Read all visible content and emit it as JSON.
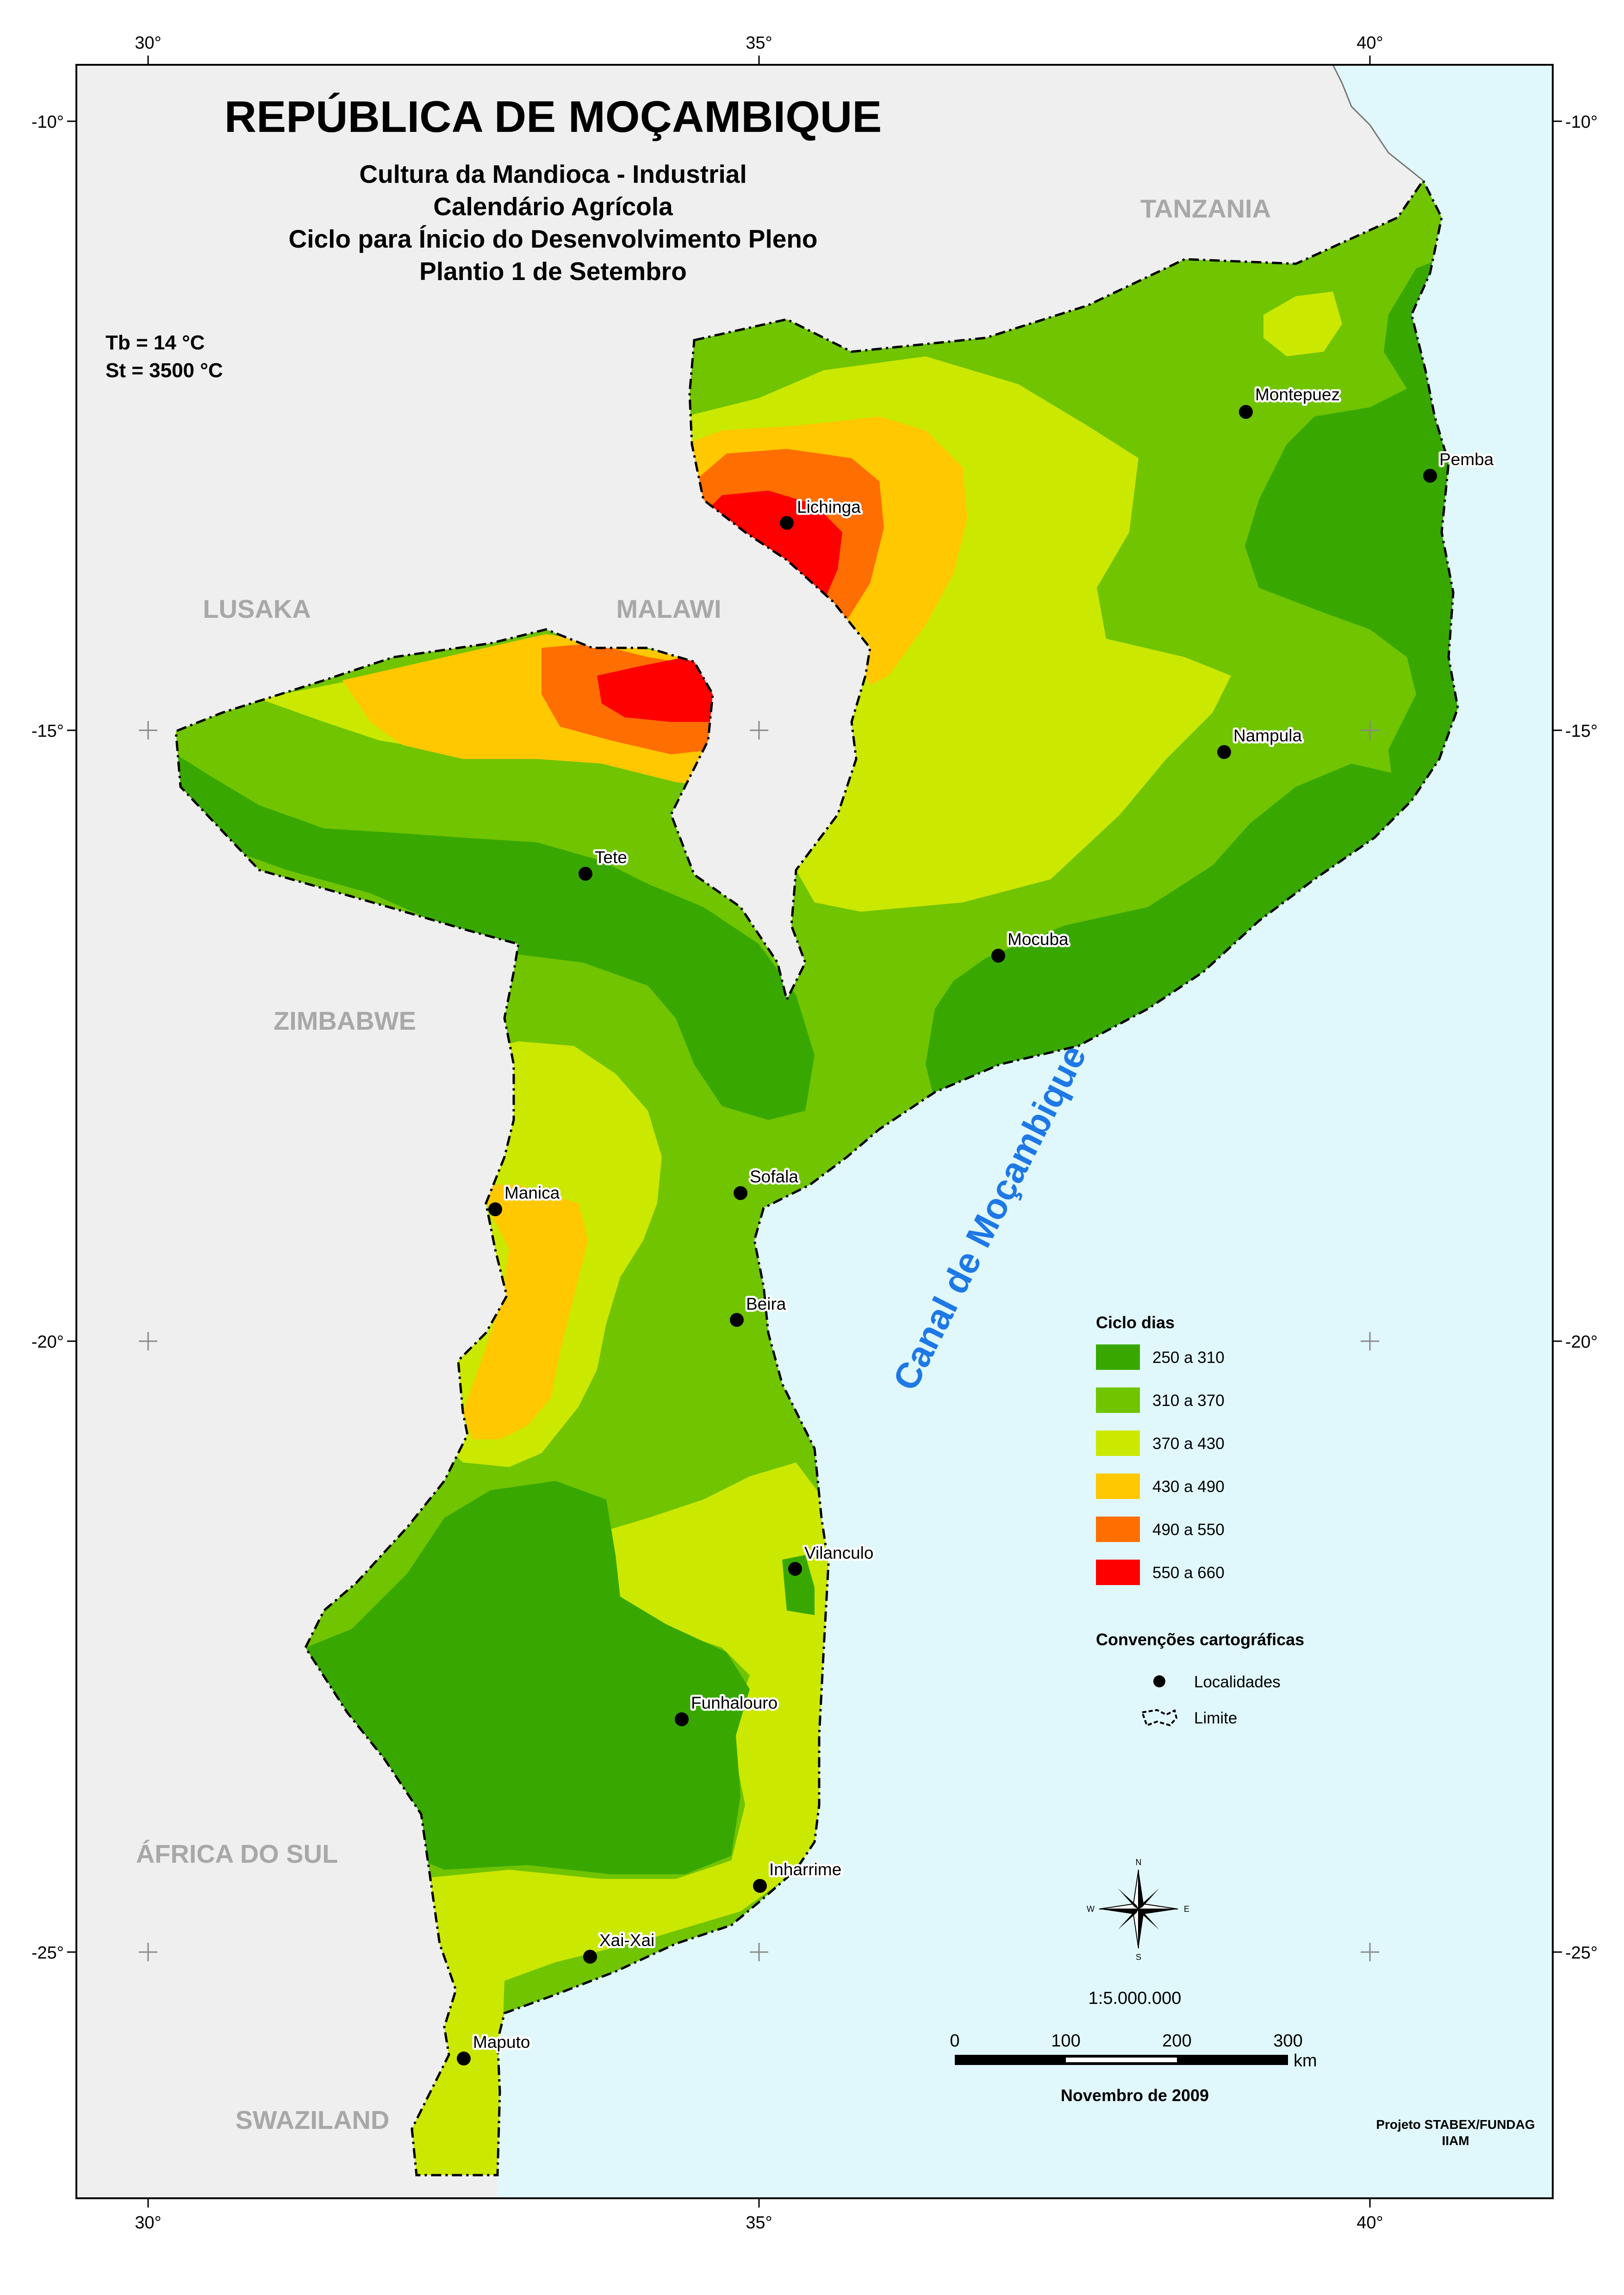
{
  "title": "REPÚBLICA DE MOÇAMBIQUE",
  "subtitle_lines": [
    "Cultura da Mandioca - Industrial",
    "Calendário Agrícola",
    "Ciclo para Ínicio do Desenvolvimento Pleno",
    "Plantio 1 de Setembro"
  ],
  "parameters": {
    "tb": "Tb = 14 °C",
    "st": "St =  3500 °C"
  },
  "graticule": {
    "top_labels": [
      "30°",
      "35°",
      "40°"
    ],
    "bottom_labels": [
      "30°",
      "35°",
      "40°"
    ],
    "left_labels": [
      "-10°",
      "-15°",
      "-20°",
      "-25°"
    ],
    "right_labels": [
      "-10°",
      "-15°",
      "-20°",
      "-25°"
    ]
  },
  "countries": {
    "tanzania": "TANZANIA",
    "lusaka": "LUSAKA",
    "malawi": "MALAWI",
    "zimbabwe": "ZIMBABWE",
    "africa_do_sul": "ÁFRICA DO SUL",
    "swaziland": "SWAZILAND"
  },
  "sea_label": "Canal de Moçambique",
  "localities": {
    "montepuez": "Montepuez",
    "pemba": "Pemba",
    "lichinga": "Lichinga",
    "nampula": "Nampula",
    "tete": "Tete",
    "mocuba": "Mocuba",
    "sofala": "Sofala",
    "manica": "Manica",
    "beira": "Beira",
    "vilanculo": "Vilanculo",
    "funhalouro": "Funhalouro",
    "inharrime": "Inharrime",
    "xai_xai": "Xai-Xai",
    "maputo": "Maputo"
  },
  "legend": {
    "title": "Ciclo dias",
    "classes": [
      {
        "label": "250 a 310",
        "color": "#38a800"
      },
      {
        "label": "310 a 370",
        "color": "#70c400"
      },
      {
        "label": "370 a 430",
        "color": "#cbe800"
      },
      {
        "label": "430 a 490",
        "color": "#ffc800"
      },
      {
        "label": "490 a 550",
        "color": "#ff6e00"
      },
      {
        "label": "550 a 660",
        "color": "#ff0000"
      }
    ],
    "conventions_title": "Convenções cartográficas",
    "localidades": "Localidades",
    "limite": "Limite"
  },
  "compass": {
    "n": "N",
    "s": "S",
    "e": "E",
    "w": "W"
  },
  "scale": {
    "ratio": "1:5.000.000",
    "ticks": [
      "0",
      "100",
      "200",
      "300"
    ],
    "unit": "km"
  },
  "date": "Novembro de 2009",
  "credits": [
    "Projeto STABEX/FUNDAG",
    "IIAM"
  ],
  "colors": {
    "land_outside": "#efefef",
    "sea": "#e0f8fc"
  }
}
